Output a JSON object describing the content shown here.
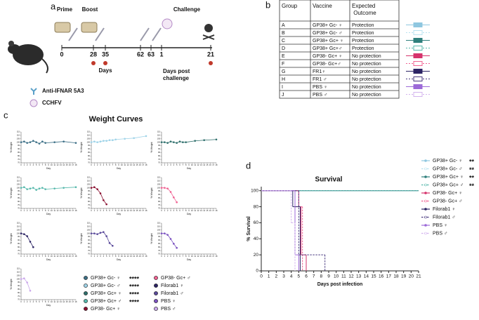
{
  "panel_a": {
    "label": "a",
    "phases": [
      "Prime",
      "Boost",
      "Challenge"
    ],
    "timeline": [
      0,
      28,
      35,
      62,
      63,
      1,
      21
    ],
    "days": "Days",
    "days_post": [
      "Days post",
      "challenge"
    ],
    "legend": [
      "Anti-IFNAR 5A3",
      "CCHFV"
    ]
  },
  "panel_b": {
    "label": "b",
    "header": [
      "Group",
      "Vaccine",
      "Expected Outcome"
    ],
    "rows": [
      [
        "A",
        "GP38+ Gc- ♀",
        "Protection"
      ],
      [
        "B",
        "GP38+ Gc- ♂",
        "Protection"
      ],
      [
        "C",
        "GP38+ Gc+ ♀",
        "Protection"
      ],
      [
        "D",
        "GP38+ Gc+♂",
        "Protection"
      ],
      [
        "E",
        "GP38- Gc+ ♀",
        "No protection"
      ],
      [
        "F",
        "GP38- Gc+♂",
        "No protection"
      ],
      [
        "G",
        "FR1♀",
        "No protection"
      ],
      [
        "H",
        "FR1 ♂",
        "No protection"
      ],
      [
        "I",
        "PBS ♀",
        "No protection"
      ],
      [
        "J",
        "PBS ♂",
        "No protection"
      ]
    ],
    "row_colors": [
      "#8fc7e0",
      "#b9e3f0",
      "#2f7f7c",
      "#56b8ab",
      "#d6336c",
      "#f06292",
      "#2c2464",
      "#4a3a80",
      "#9c6ad8",
      "#d3b3ee"
    ]
  },
  "panel_c": {
    "label": "c",
    "title": "Weight Curves",
    "y_label": "% Weight",
    "x_label": "Day",
    "ylim": [
      70,
      115
    ],
    "yticks": [
      70,
      75,
      80,
      85,
      90,
      95,
      100,
      105,
      110,
      115
    ],
    "xlim": [
      0,
      18
    ],
    "xticks": [
      0,
      1,
      2,
      3,
      4,
      5,
      6,
      7,
      8,
      9,
      10,
      11,
      12,
      13,
      14,
      15,
      16,
      17,
      18
    ],
    "subplots": [
      {
        "name": "GP38+ Gc- ♀",
        "stars": "****",
        "color": "#3c6f86",
        "x": [
          0,
          1,
          2,
          3,
          4,
          5,
          6,
          7,
          8,
          11,
          14,
          18
        ],
        "values": [
          100,
          101,
          99,
          100,
          102,
          100,
          98,
          101,
          99,
          100,
          101,
          99
        ]
      },
      {
        "name": "GP38+ Gc- ♂",
        "stars": "****",
        "color": "#9fd3e8",
        "x": [
          0,
          1,
          2,
          3,
          4,
          5,
          6,
          7,
          8,
          11,
          14,
          18
        ],
        "values": [
          100,
          101,
          100,
          101,
          102,
          102,
          103,
          103,
          104,
          105,
          106,
          109
        ]
      },
      {
        "name": "GP38+ Gc+ ♀",
        "stars": "****",
        "color": "#2f6f6c",
        "x": [
          0,
          1,
          2,
          3,
          4,
          5,
          6,
          7,
          8,
          11,
          14,
          18
        ],
        "values": [
          100,
          100,
          99,
          101,
          100,
          99,
          101,
          100,
          100,
          102,
          103,
          104
        ]
      },
      {
        "name": "GP38+ Gc+ ♂",
        "stars": "****",
        "color": "#56b8ab",
        "x": [
          0,
          1,
          2,
          3,
          4,
          5,
          6,
          7,
          8,
          11,
          14,
          18
        ],
        "values": [
          100,
          101,
          98,
          99,
          100,
          97,
          99,
          100,
          98,
          99,
          100,
          101
        ]
      },
      {
        "name": "GP38- Gc+ ♀",
        "color": "#8a1030",
        "x": [
          0,
          1,
          2,
          3,
          4,
          5
        ],
        "values": [
          100,
          101,
          98,
          92,
          82,
          76
        ]
      },
      {
        "name": "GP38- Gc+ ♂",
        "color": "#f06292",
        "x": [
          0,
          1,
          2,
          3,
          4,
          5
        ],
        "values": [
          100,
          100,
          99,
          94,
          86,
          79
        ]
      },
      {
        "name": "Filorab1 ♀",
        "color": "#2c2464",
        "x": [
          0,
          1,
          2,
          3,
          4
        ],
        "values": [
          100,
          99,
          96,
          88,
          80
        ]
      },
      {
        "name": "Filorab1 ♂",
        "color": "#5a4a9a",
        "x": [
          0,
          1,
          2,
          3,
          4,
          5,
          6,
          7
        ],
        "values": [
          100,
          100,
          99,
          101,
          102,
          96,
          86,
          82
        ]
      },
      {
        "name": "PBS ♀",
        "color": "#7b52c0",
        "x": [
          0,
          1,
          2,
          3,
          4,
          5
        ],
        "values": [
          100,
          100,
          98,
          92,
          85,
          79
        ]
      },
      {
        "name": "PBS ♂",
        "color": "#c9a6ea",
        "x": [
          0,
          1,
          2,
          3
        ],
        "values": [
          100,
          101,
          95,
          83
        ]
      }
    ]
  },
  "panel_d": {
    "label": "d",
    "type": "line",
    "title": "Survival",
    "y_label": "% Survival",
    "x_label": "Days post infection",
    "xlim": [
      0,
      21
    ],
    "ylim": [
      0,
      105
    ],
    "xticks": [
      0,
      1,
      2,
      3,
      4,
      5,
      6,
      7,
      8,
      9,
      10,
      11,
      12,
      13,
      14,
      15,
      16,
      17,
      18,
      19,
      20,
      21
    ],
    "yticks": [
      0,
      20,
      40,
      60,
      80,
      100
    ],
    "series": [
      {
        "name": "GP38+ Gc- ♀",
        "stars": "**",
        "color": "#8fc7e0",
        "dashed": false,
        "x": [
          0,
          21
        ],
        "values": [
          100,
          100
        ]
      },
      {
        "name": "GP38+ Gc- ♂",
        "stars": "**",
        "color": "#b9e3f0",
        "dashed": true,
        "x": [
          0,
          21
        ],
        "values": [
          100,
          100
        ]
      },
      {
        "name": "GP38+ Gc+ ♀",
        "stars": "**",
        "color": "#2f7f7c",
        "dashed": false,
        "x": [
          0,
          21
        ],
        "values": [
          100,
          100
        ]
      },
      {
        "name": "GP38+ Gc+ ♂",
        "stars": "**",
        "color": "#56b8ab",
        "dashed": true,
        "x": [
          0,
          21
        ],
        "values": [
          100,
          100
        ]
      },
      {
        "name": "GP38- Gc+ ♀",
        "color": "#d6336c",
        "dashed": false,
        "x": [
          0,
          5,
          5.3,
          6
        ],
        "values": [
          100,
          80,
          20,
          0
        ]
      },
      {
        "name": "GP38- Gc+ ♂",
        "color": "#f06292",
        "dashed": true,
        "x": [
          0,
          4.5,
          5.5
        ],
        "values": [
          100,
          80,
          0
        ]
      },
      {
        "name": "Filorab1 ♀",
        "color": "#2c2464",
        "dashed": false,
        "x": [
          0,
          4.2,
          5.2
        ],
        "values": [
          100,
          80,
          0
        ]
      },
      {
        "name": "Filorab1 ♂",
        "color": "#4a3a80",
        "dashed": true,
        "x": [
          0,
          5,
          8.5
        ],
        "values": [
          100,
          20,
          0
        ]
      },
      {
        "name": "PBS ♀",
        "color": "#9c6ad8",
        "dashed": false,
        "x": [
          0,
          4.5,
          5
        ],
        "values": [
          100,
          20,
          0
        ]
      },
      {
        "name": "PBS ♂",
        "color": "#d3b3ee",
        "dashed": true,
        "x": [
          0,
          4,
          4.5
        ],
        "values": [
          100,
          60,
          0
        ]
      }
    ]
  }
}
